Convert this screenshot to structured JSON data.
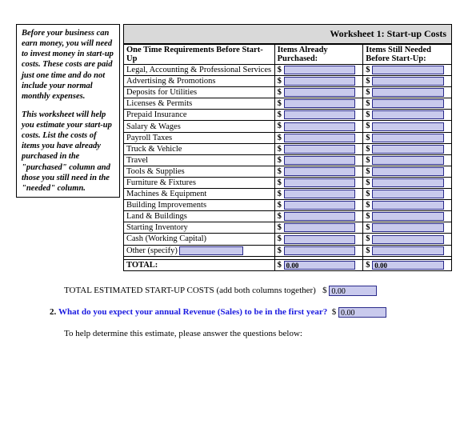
{
  "colors": {
    "input_bg": "#c9caed",
    "input_border": "#2a2a8a",
    "header_bg": "#d9d9d9",
    "link_color": "#1a1ae0"
  },
  "sidebar": {
    "para1": "Before your business can earn money, you will need to invest money in start-up costs. These costs are paid just one time and do not include your normal monthly expenses.",
    "para2": "This worksheet will help you estimate your start-up costs. List the costs of items you have already purchased in the \"purchased\" column and those you still need in the \"needed\" column."
  },
  "worksheet": {
    "title": "Worksheet 1:  Start-up Costs",
    "col1": "One Time Requirements Before Start-Up",
    "col2": "Items Already Purchased:",
    "col3": "Items Still Needed Before Start-Up:",
    "rows": [
      {
        "label": "Legal, Accounting & Professional Services",
        "v1": "",
        "v2": ""
      },
      {
        "label": "Advertising & Promotions",
        "v1": "",
        "v2": ""
      },
      {
        "label": "Deposits for Utilities",
        "v1": "",
        "v2": ""
      },
      {
        "label": "Licenses & Permits",
        "v1": "",
        "v2": ""
      },
      {
        "label": "Prepaid Insurance",
        "v1": "",
        "v2": ""
      },
      {
        "label": "Salary & Wages",
        "v1": "",
        "v2": ""
      },
      {
        "label": "Payroll Taxes",
        "v1": "",
        "v2": ""
      },
      {
        "label": "Truck & Vehicle",
        "v1": "",
        "v2": ""
      },
      {
        "label": "Travel",
        "v1": "",
        "v2": ""
      },
      {
        "label": "Tools & Supplies",
        "v1": "",
        "v2": ""
      },
      {
        "label": "Furniture & Fixtures",
        "v1": "",
        "v2": ""
      },
      {
        "label": "Machines & Equipment",
        "v1": "",
        "v2": ""
      },
      {
        "label": "Building Improvements",
        "v1": "",
        "v2": ""
      },
      {
        "label": "Land & Buildings",
        "v1": "",
        "v2": ""
      },
      {
        "label": "Starting Inventory",
        "v1": "",
        "v2": ""
      },
      {
        "label": "Cash (Working Capital)",
        "v1": "",
        "v2": ""
      }
    ],
    "other_prefix": "Other (specify)",
    "other_value": "",
    "other_v1": "",
    "other_v2": "",
    "total_label": "TOTAL:",
    "total_v1": "0.00",
    "total_v2": "0.00"
  },
  "body": {
    "total_line": "TOTAL ESTIMATED START-UP COSTS (add both columns together)",
    "total_value": "0.00",
    "q2_num": "2.",
    "q2_text": "What do you expect your annual Revenue (Sales) to be in the first year?",
    "q2_value": "0.00",
    "help_line": "To help determine this estimate, please answer the questions below:"
  },
  "currency": "$"
}
